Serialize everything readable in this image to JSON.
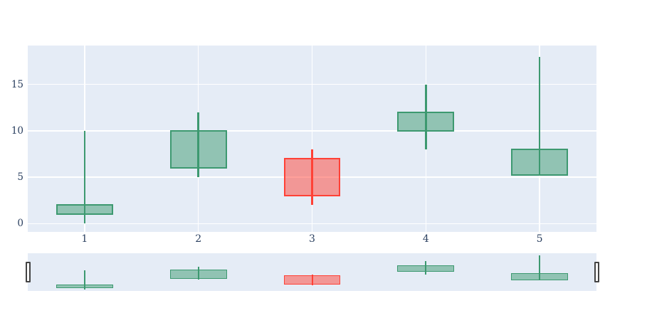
{
  "chart_data": {
    "type": "candlestick",
    "title": "",
    "xlabel": "",
    "ylabel": "",
    "x": [
      1,
      2,
      3,
      4,
      5
    ],
    "open": [
      1,
      6,
      7,
      10,
      5.2
    ],
    "high": [
      10,
      12,
      8,
      15,
      18
    ],
    "low": [
      0,
      5,
      2,
      8,
      5.2
    ],
    "close": [
      2,
      10,
      3,
      12,
      8
    ],
    "directions": [
      "increasing",
      "increasing",
      "decreasing",
      "increasing",
      "increasing"
    ],
    "xticks": [
      "1",
      "2",
      "3",
      "4",
      "5"
    ],
    "xtick_values": [
      1,
      2,
      3,
      4,
      5
    ],
    "yticks": [
      "0",
      "5",
      "10",
      "15"
    ],
    "ytick_values": [
      0,
      5,
      10,
      15
    ],
    "x_range": [
      0.5,
      5.5
    ],
    "y_range": [
      -0.9,
      19.2
    ],
    "grid": true,
    "legend": false,
    "rangeslider": true,
    "colors": {
      "increasing_line": "#3D9970",
      "increasing_fill": "rgba(61,153,112,0.5)",
      "decreasing_line": "#FF4136",
      "decreasing_fill": "rgba(255,65,54,0.5)",
      "plot_background": "#E5ECF6",
      "paper_background": "#FFFFFF",
      "gridline": "#FFFFFF",
      "tick_text": "#2A3F5F",
      "handle_border": "#444444",
      "handle_fill": "#FFFFFF"
    }
  }
}
